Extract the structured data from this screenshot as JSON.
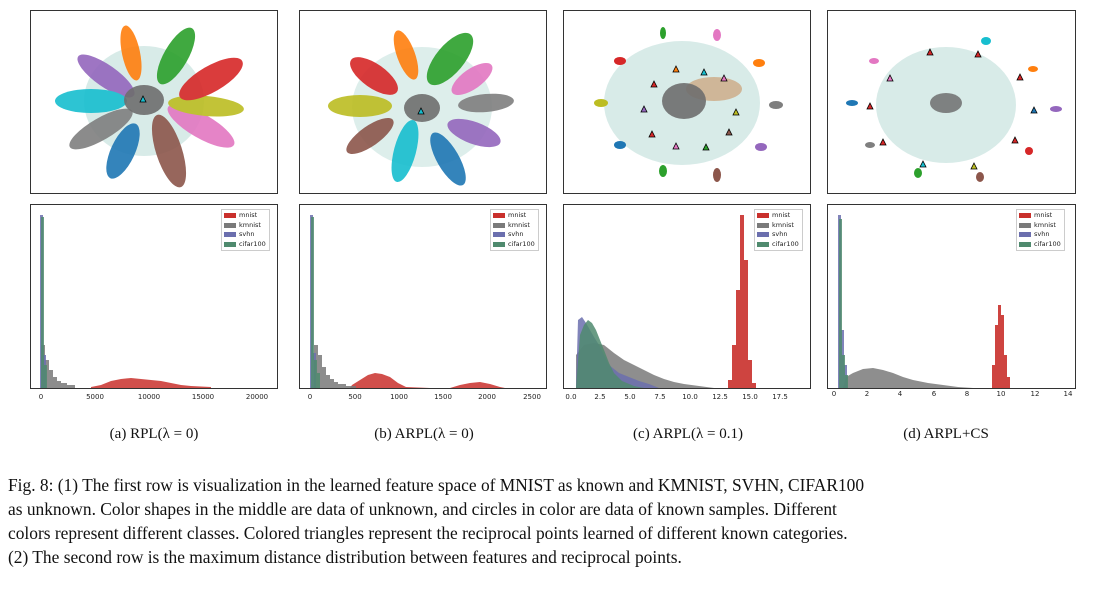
{
  "colors": {
    "mnist": "#c9302c",
    "kmnist": "#7a7a7a",
    "svhn": "#6b6fae",
    "cifar100": "#4f8a6e",
    "unknown_cloud": "#8fc7bd",
    "known_core": "#6e6e6e",
    "classes": [
      "#2ca02c",
      "#ff7f0e",
      "#9467bd",
      "#17becf",
      "#7f7f7f",
      "#1f77b4",
      "#8c564b",
      "#e377c2",
      "#bcbd22",
      "#d62728"
    ]
  },
  "legend": [
    "mnist",
    "kmnist",
    "svhn",
    "cifar100"
  ],
  "panels": [
    {
      "caption": "(a) RPL(λ = 0)",
      "xticks": [
        "0",
        "5000",
        "10000",
        "15000",
        "20000"
      ]
    },
    {
      "caption": "(b) ARPL(λ = 0)",
      "xticks": [
        "0",
        "500",
        "1000",
        "1500",
        "2000",
        "2500"
      ]
    },
    {
      "caption": "(c) ARPL(λ = 0.1)",
      "xticks": [
        "0.0",
        "2.5",
        "5.0",
        "7.5",
        "10.0",
        "12.5",
        "15.0",
        "17.5"
      ]
    },
    {
      "caption": "(d) ARPL+CS",
      "xticks": [
        "0",
        "2",
        "4",
        "6",
        "8",
        "10",
        "12",
        "14"
      ]
    }
  ],
  "figure_caption": [
    "Fig. 8: (1) The first row is visualization in the learned feature space of MNIST as known and KMNIST, SVHN, CIFAR100",
    "as unknown. Color shapes in the middle are data of unknown, and circles in color are data of known samples. Different",
    "colors represent different classes. Colored triangles represent the reciprocal points learned of different known categories.",
    "(2) The second row is the maximum distance distribution between features and reciprocal points."
  ]
}
